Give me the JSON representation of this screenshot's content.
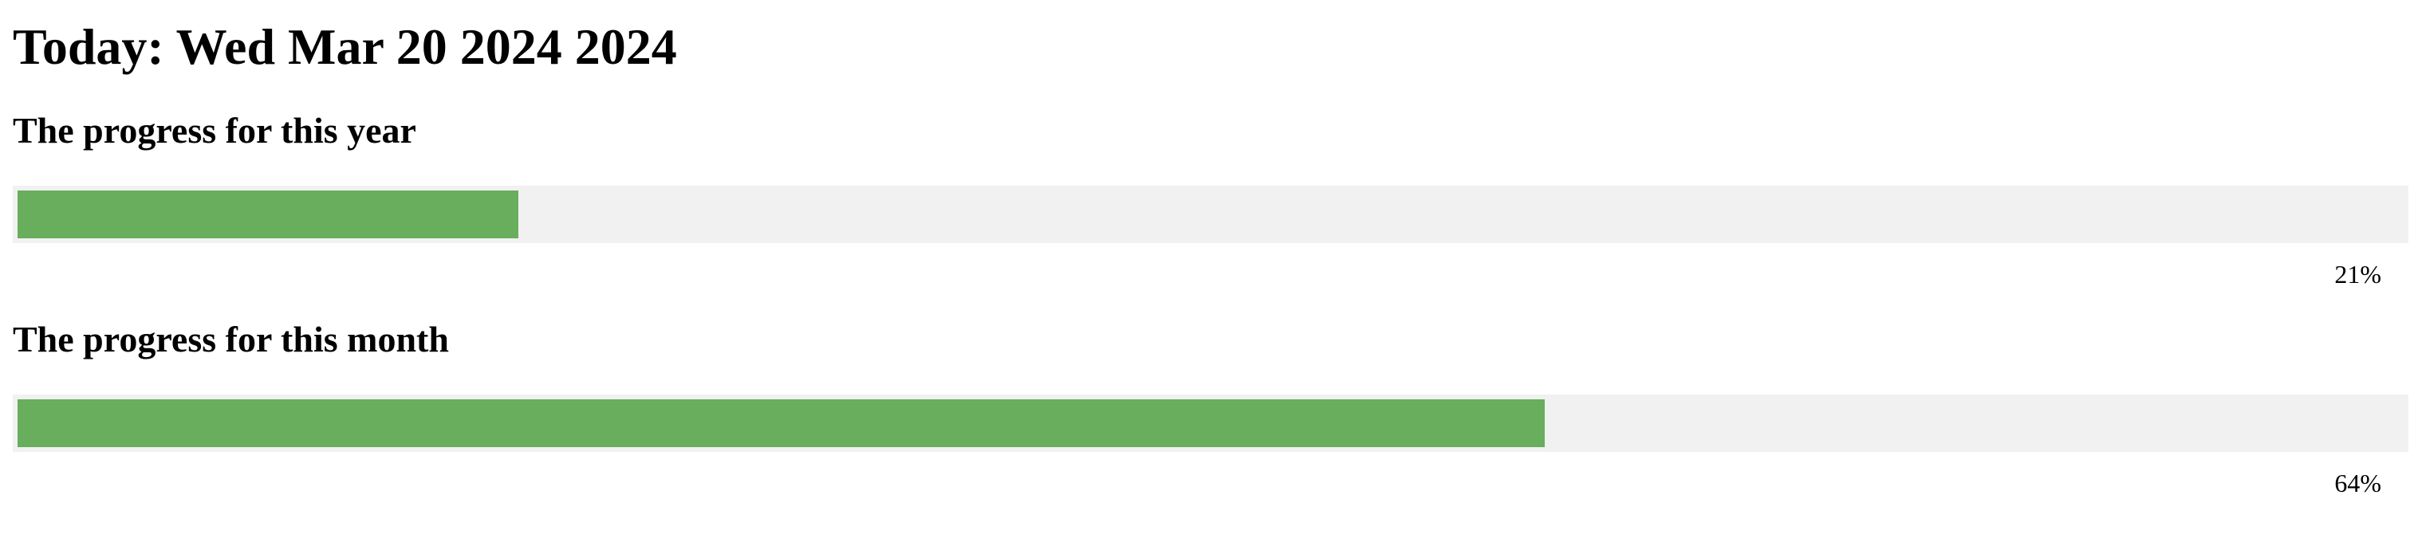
{
  "page": {
    "today_text": "Today: Wed Mar 20 2024 2024"
  },
  "colors": {
    "track": "#f1f1f1",
    "fill": "#68ae5c",
    "text": "#000000"
  },
  "progress": [
    {
      "key": "year",
      "heading": "The progress for this year",
      "value": 0.21,
      "label": "21%"
    },
    {
      "key": "month",
      "heading": "The progress for this month",
      "value": 0.64,
      "label": "64%"
    }
  ]
}
